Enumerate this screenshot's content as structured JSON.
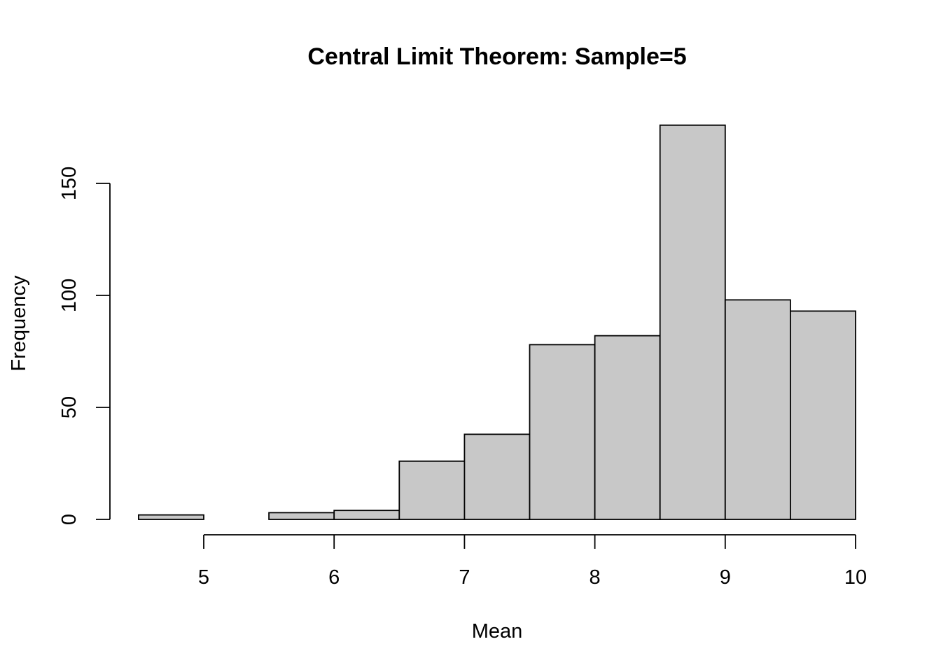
{
  "chart_data": {
    "type": "bar",
    "title": "Central Limit Theorem: Sample=5",
    "xlabel": "Mean",
    "ylabel": "Frequency",
    "bins": [
      {
        "start": 4.5,
        "end": 5.0,
        "count": 2
      },
      {
        "start": 5.0,
        "end": 5.5,
        "count": 0
      },
      {
        "start": 5.5,
        "end": 6.0,
        "count": 3
      },
      {
        "start": 6.0,
        "end": 6.5,
        "count": 4
      },
      {
        "start": 6.5,
        "end": 7.0,
        "count": 26
      },
      {
        "start": 7.0,
        "end": 7.5,
        "count": 38
      },
      {
        "start": 7.5,
        "end": 8.0,
        "count": 78
      },
      {
        "start": 8.0,
        "end": 8.5,
        "count": 82
      },
      {
        "start": 8.5,
        "end": 9.0,
        "count": 176
      },
      {
        "start": 9.0,
        "end": 9.5,
        "count": 98
      },
      {
        "start": 9.5,
        "end": 10.0,
        "count": 93
      }
    ],
    "x_ticks": [
      "5",
      "6",
      "7",
      "8",
      "9",
      "10"
    ],
    "y_ticks": [
      "0",
      "50",
      "100",
      "150"
    ],
    "xlim": [
      4.5,
      10
    ],
    "ylim": [
      0,
      176
    ],
    "grid": false,
    "colors": {
      "bar_fill": "#c8c8c8",
      "bar_stroke": "#000000"
    }
  }
}
